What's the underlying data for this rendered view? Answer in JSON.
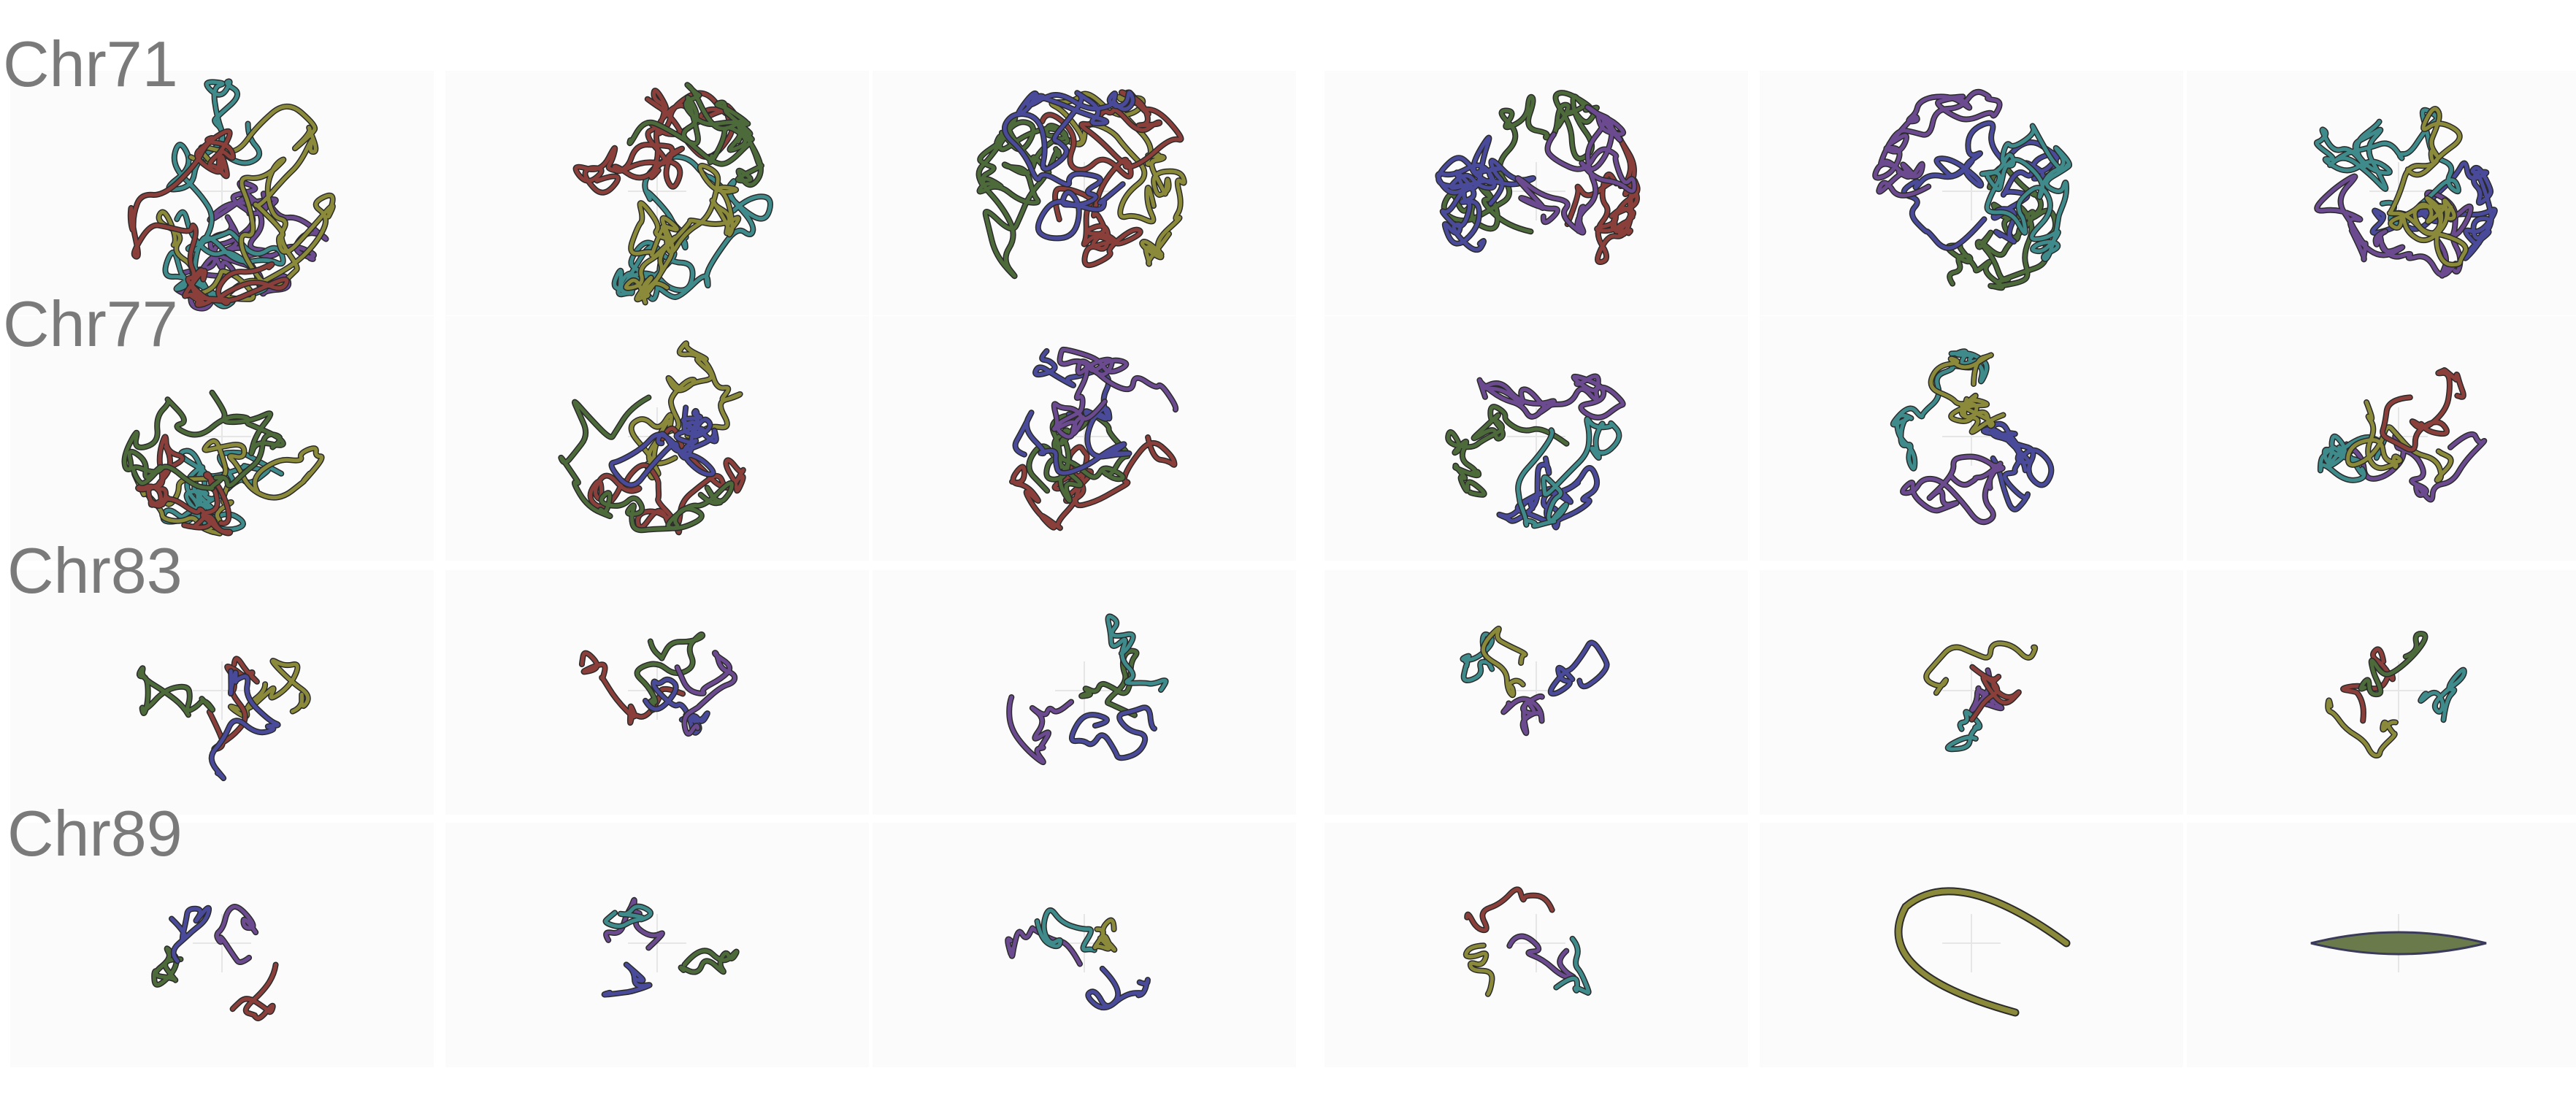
{
  "rows": [
    {
      "label": "Chr71"
    },
    {
      "label": "Chr77"
    },
    {
      "label": "Chr83"
    },
    {
      "label": "Chr89"
    }
  ]
}
